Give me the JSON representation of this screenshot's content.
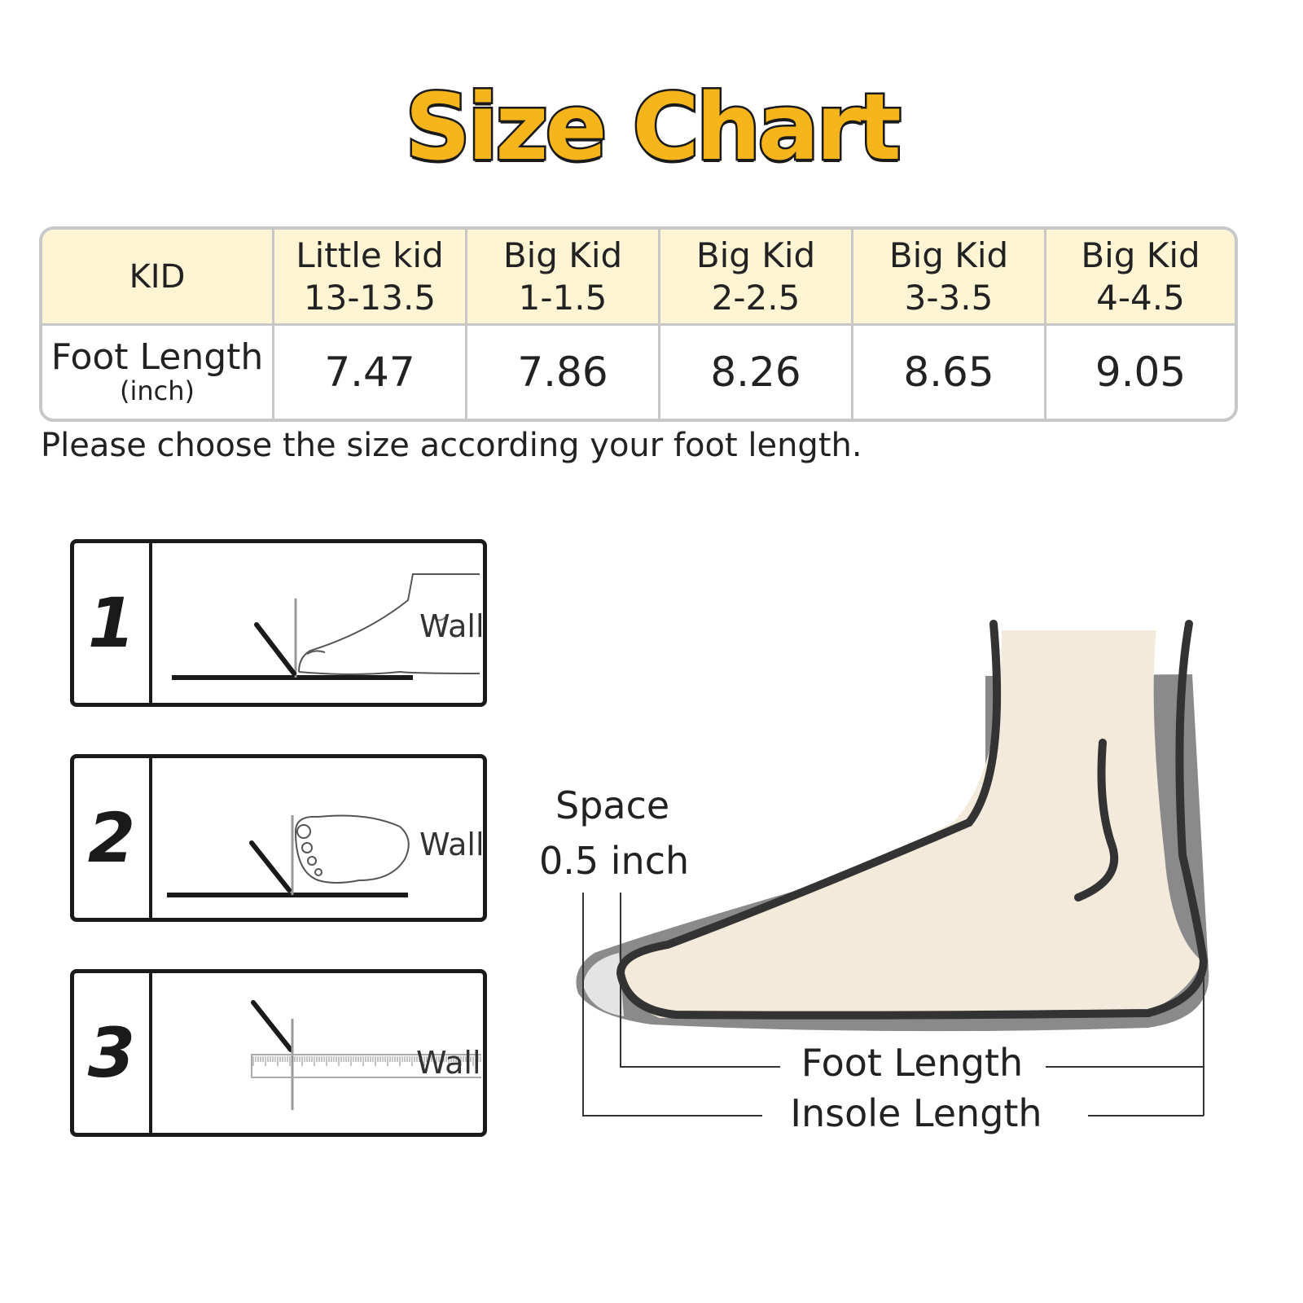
{
  "title": "Size Chart",
  "table": {
    "header_label": "KID",
    "row_label": "Foot Length",
    "row_unit": "(inch)",
    "columns": [
      {
        "line1": "Little kid",
        "line2": "13-13.5",
        "foot_length": "7.47"
      },
      {
        "line1": "Big Kid",
        "line2": "1-1.5",
        "foot_length": "7.86"
      },
      {
        "line1": "Big Kid",
        "line2": "2-2.5",
        "foot_length": "8.26"
      },
      {
        "line1": "Big Kid",
        "line2": "3-3.5",
        "foot_length": "8.65"
      },
      {
        "line1": "Big Kid",
        "line2": "4-4.5",
        "foot_length": "9.05"
      }
    ]
  },
  "note": "Please choose the size according your foot length.",
  "steps": [
    {
      "number": "1",
      "wall_label": "Wall"
    },
    {
      "number": "2",
      "wall_label": "Wall"
    },
    {
      "number": "3",
      "wall_label": "Wall"
    }
  ],
  "diagram": {
    "space_label": "Space",
    "space_value": "0.5 inch",
    "foot_length_label": "Foot Length",
    "insole_length_label": "Insole Length"
  },
  "colors": {
    "title_fill": "#f6b51b",
    "header_bg": "#fff4d4",
    "foot_fill": "#f3eadc",
    "insole_fill": "#8a8a8a",
    "outline": "#333333"
  }
}
